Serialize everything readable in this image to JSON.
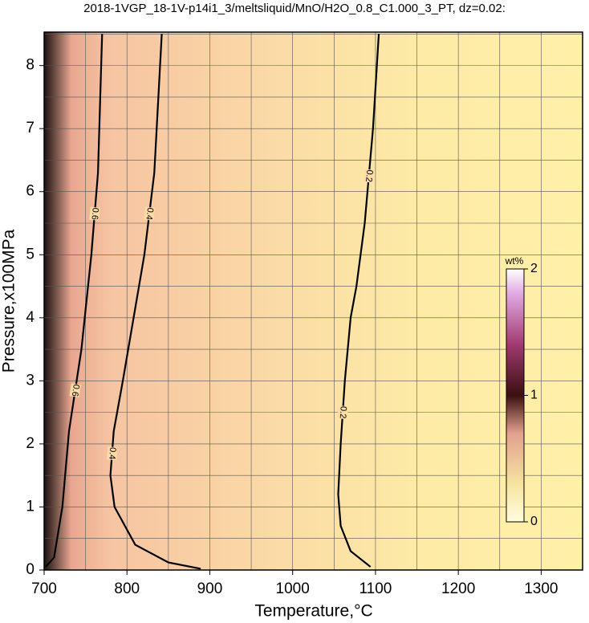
{
  "chart_data": {
    "type": "contour",
    "title": "2018-1VGP_18-1V-p14i1_3/meltsliquid/MnO/H2O_0.8_C1.000_3_PT, dz=0.02:",
    "x_label": "Temperature,°C",
    "y_label": "Pressure,x100MPa",
    "xlim": [
      700,
      1350
    ],
    "ylim": [
      0,
      8.53
    ],
    "xticks": [
      700,
      800,
      900,
      1000,
      1100,
      1200,
      1300
    ],
    "yticks": [
      0,
      1,
      2,
      3,
      4,
      5,
      6,
      7,
      8
    ],
    "xgrid": [
      750,
      800,
      850,
      900,
      950,
      1000,
      1050,
      1100,
      1150,
      1200,
      1250,
      1300
    ],
    "ygrid": [
      0.5,
      1,
      1.5,
      2,
      2.5,
      3,
      3.5,
      4,
      4.5,
      5,
      5.5,
      6,
      6.5,
      7,
      7.5,
      8,
      8.5
    ],
    "contours": [
      {
        "level": 0.2,
        "color": "#000000",
        "x": [
          1094,
          1070,
          1058,
          1055,
          1058,
          1063,
          1070,
          1077,
          1087,
          1097,
          1104
        ],
        "y": [
          0.05,
          0.3,
          0.7,
          1.2,
          2,
          3,
          4,
          4.5,
          5.5,
          7,
          8.5
        ]
      },
      {
        "level": 0.4,
        "color": "#000000",
        "x": [
          889,
          850,
          810,
          785,
          780,
          784,
          795,
          808,
          821,
          833,
          842
        ],
        "y": [
          0.02,
          0.12,
          0.4,
          1,
          1.5,
          2.2,
          3,
          4,
          5,
          6.3,
          8.5
        ]
      },
      {
        "level": 0.6,
        "color": "#000000",
        "x": [
          702,
          712,
          722,
          730,
          745,
          757,
          765,
          770
        ],
        "y": [
          0.05,
          0.2,
          1,
          2.2,
          3.5,
          5,
          6.3,
          8.5
        ]
      }
    ],
    "colorbar": {
      "label": "wt%",
      "lim": [
        0,
        2
      ],
      "ticks": [
        0,
        1,
        2
      ]
    }
  }
}
